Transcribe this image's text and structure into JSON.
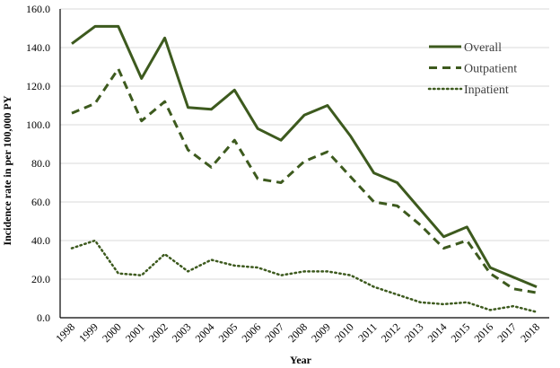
{
  "chart_data": {
    "type": "line",
    "title": "",
    "xlabel": "Year",
    "ylabel": "Incidence rate in per 100,000 PY",
    "ylim": [
      0,
      160
    ],
    "yticks": [
      "0.0",
      "20.0",
      "40.0",
      "60.0",
      "80.0",
      "100.0",
      "120.0",
      "140.0",
      "160.0"
    ],
    "grid": "horizontal",
    "legend_position": "top-right",
    "color": "#3d5a1e",
    "x": [
      "1998",
      "1999",
      "2000",
      "2001",
      "2002",
      "2003",
      "2004",
      "2005",
      "2006",
      "2007",
      "2008",
      "2009",
      "2010",
      "2011",
      "2012",
      "2013",
      "2014",
      "2015",
      "2016",
      "2017",
      "2018"
    ],
    "series": [
      {
        "name": "Overall",
        "style": "solid",
        "values": [
          142,
          151,
          151,
          124,
          145,
          109,
          108,
          118,
          98,
          92,
          105,
          110,
          94,
          75,
          70,
          56,
          42,
          47,
          26,
          21,
          16
        ]
      },
      {
        "name": "Outpatient",
        "style": "dashed",
        "values": [
          106,
          111,
          129,
          102,
          112,
          87,
          78,
          92,
          72,
          70,
          81,
          86,
          73,
          60,
          58,
          48,
          36,
          40,
          23,
          15,
          13
        ]
      },
      {
        "name": "Inpatient",
        "style": "dotted",
        "values": [
          36,
          40,
          23,
          22,
          33,
          24,
          30,
          27,
          26,
          22,
          24,
          24,
          22,
          16,
          12,
          8,
          7,
          8,
          4,
          6,
          3
        ]
      }
    ]
  }
}
